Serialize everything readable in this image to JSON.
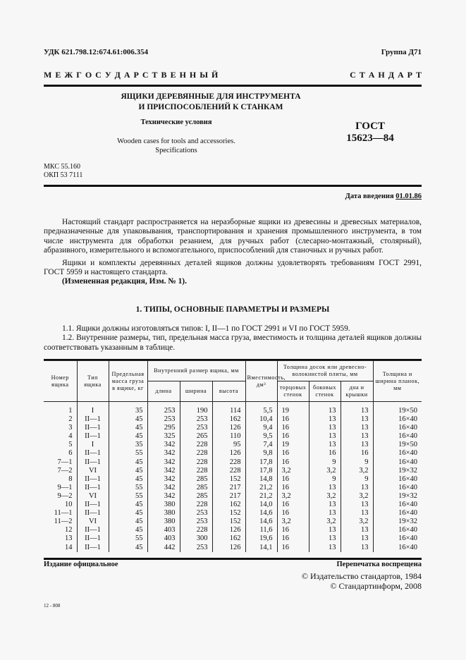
{
  "header": {
    "udk": "УДК 621.798.12:674.61:006.354",
    "group": "Группа Д71",
    "spaced_left": "М Е Ж Г О С У Д А Р С Т В Е Н Н Ы Й",
    "spaced_right": "С Т А Н Д А Р Т"
  },
  "title": {
    "line1": "ЯЩИКИ ДЕРЕВЯННЫЕ ДЛЯ ИНСТРУМЕНТА",
    "line2": "И ПРИСПОСОБЛЕНИЙ К СТАНКАМ",
    "subtitle": "Технические условия",
    "english1": "Wooden cases for tools and accessories.",
    "english2": "Specifications",
    "gost1": "ГОСТ",
    "gost2": "15623—84",
    "mks": "МКС 55.160",
    "okp": "ОКП 53 7111",
    "date_label": "Дата введения",
    "date_value": "01.01.86"
  },
  "intro": {
    "p1": "Настоящий стандарт распространяется на неразборные ящики из древесины и древесных материалов, предназначенные для упаковывания, транспортирования и хранения промышленного инструмента, в том числе инструмента для обработки резанием, для ручных работ (слесарно-монтажный, столярный), абразивного, измерительного и вспомогательного, приспособлений для станочных и ручных работ.",
    "p2": "Ящики и комплекты деревянных деталей ящиков должны удовлетворять требованиям ГОСТ 2991, ГОСТ 5959 и настоящего стандарта.",
    "p3": "(Измененная редакция, Изм. № 1)."
  },
  "section": {
    "heading": "1. ТИПЫ, ОСНОВНЫЕ ПАРАМЕТРЫ И РАЗМЕРЫ",
    "p11": "1.1. Ящики должны изготовляться типов: I, II—1 по ГОСТ 2991 и VI по ГОСТ 5959.",
    "p12": "1.2. Внутренние размеры, тип, предельная масса груза, вместимость и толщина деталей ящиков должны соответствовать указанным в таблице."
  },
  "table": {
    "h_number": "Номер ящика",
    "h_type": "Тип ящика",
    "h_mass": "Предельная масса груза в ящике, кг",
    "h_inner": "Внутренний размер ящика, мм",
    "h_length": "длина",
    "h_width": "ширина",
    "h_height": "высота",
    "h_capacity": "Вместимость, дм³",
    "h_thickness": "Толщина досок или древесно-волокнистой плиты, мм",
    "h_end": "торцовых стенок",
    "h_side": "боковых стенок",
    "h_bottom": "дна и крышки",
    "h_strips": "Толщина и ширина планок, мм",
    "rows": [
      [
        "1",
        "I",
        "35",
        "253",
        "190",
        "114",
        "5,5",
        "19",
        "13",
        "13",
        "19×50"
      ],
      [
        "2",
        "II—1",
        "45",
        "253",
        "253",
        "162",
        "10,4",
        "16",
        "13",
        "13",
        "16×40"
      ],
      [
        "3",
        "II—1",
        "45",
        "295",
        "253",
        "126",
        "9,4",
        "16",
        "13",
        "13",
        "16×40"
      ],
      [
        "4",
        "II—1",
        "45",
        "325",
        "265",
        "110",
        "9,5",
        "16",
        "13",
        "13",
        "16×40"
      ],
      [
        "5",
        "I",
        "35",
        "342",
        "228",
        "95",
        "7,4",
        "19",
        "13",
        "13",
        "19×50"
      ],
      [
        "6",
        "II—1",
        "55",
        "342",
        "228",
        "126",
        "9,8",
        "16",
        "16",
        "16",
        "16×40"
      ],
      [
        "7—1",
        "II—1",
        "45",
        "342",
        "228",
        "228",
        "17,8",
        "16",
        "9",
        "9",
        "16×40"
      ],
      [
        "7—2",
        "VI",
        "45",
        "342",
        "228",
        "228",
        "17,8",
        "3,2",
        "3,2",
        "3,2",
        "19×32"
      ],
      [
        "8",
        "II—1",
        "45",
        "342",
        "285",
        "152",
        "14,8",
        "16",
        "9",
        "9",
        "16×40"
      ],
      [
        "9—1",
        "II—1",
        "55",
        "342",
        "285",
        "217",
        "21,2",
        "16",
        "13",
        "13",
        "16×40"
      ],
      [
        "9—2",
        "VI",
        "55",
        "342",
        "285",
        "217",
        "21,2",
        "3,2",
        "3,2",
        "3,2",
        "19×32"
      ],
      [
        "10",
        "II—1",
        "45",
        "380",
        "228",
        "162",
        "14,0",
        "16",
        "13",
        "13",
        "16×40"
      ],
      [
        "11—1",
        "II—1",
        "45",
        "380",
        "253",
        "152",
        "14,6",
        "16",
        "13",
        "13",
        "16×40"
      ],
      [
        "11—2",
        "VI",
        "45",
        "380",
        "253",
        "152",
        "14,6",
        "3,2",
        "3,2",
        "3,2",
        "19×32"
      ],
      [
        "12",
        "II—1",
        "45",
        "403",
        "228",
        "126",
        "11,6",
        "16",
        "13",
        "13",
        "16×40"
      ],
      [
        "13",
        "II—1",
        "55",
        "403",
        "300",
        "162",
        "19,6",
        "16",
        "13",
        "13",
        "16×40"
      ],
      [
        "14",
        "II—1",
        "45",
        "442",
        "253",
        "126",
        "14,1",
        "16",
        "13",
        "13",
        "16×40"
      ]
    ]
  },
  "footer": {
    "official": "Издание официальное",
    "reprint": "Перепечатка воспрещена",
    "copyright1": "© Издательство стандартов, 1984",
    "copyright2": "© Стандартинформ, 2008",
    "code": "12 - 808"
  }
}
